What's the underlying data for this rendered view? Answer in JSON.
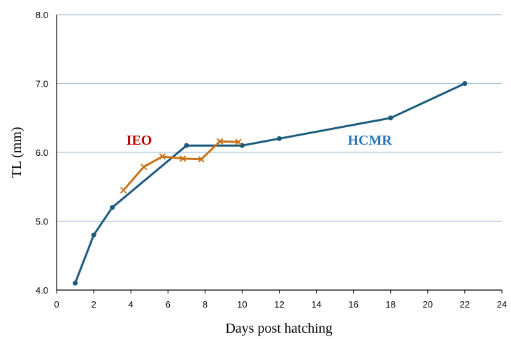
{
  "chart_data": {
    "type": "line",
    "xlabel": "Days post hatching",
    "ylabel": "TL (mm)",
    "xlim": [
      0,
      24
    ],
    "ylim": [
      4.0,
      8.0
    ],
    "x_ticks": [
      "0",
      "2",
      "4",
      "6",
      "8",
      "10",
      "12",
      "14",
      "16",
      "18",
      "20",
      "22",
      "24"
    ],
    "y_ticks": [
      "4.0",
      "5.0",
      "6.0",
      "7.0",
      "8.0"
    ],
    "grid": "horizontal",
    "legend": "none",
    "series": [
      {
        "name": "HCMR",
        "color": "#1c5a7d",
        "marker": "circle",
        "x": [
          1,
          2,
          3,
          7,
          10,
          12,
          18,
          22
        ],
        "y": [
          4.1,
          4.8,
          5.2,
          6.1,
          6.1,
          6.2,
          6.5,
          7.0
        ]
      },
      {
        "name": "IEO",
        "color": "#c8721a",
        "marker": "x",
        "x": [
          3.6,
          4.7,
          5.7,
          6.8,
          7.8,
          8.8,
          9.8
        ],
        "y": [
          5.45,
          5.79,
          5.94,
          5.91,
          5.9,
          6.16,
          6.15
        ]
      }
    ],
    "annotations": [
      {
        "text": "IEO",
        "color": "#c00000"
      },
      {
        "text": "HCMR",
        "color": "#2e74b5"
      }
    ]
  }
}
